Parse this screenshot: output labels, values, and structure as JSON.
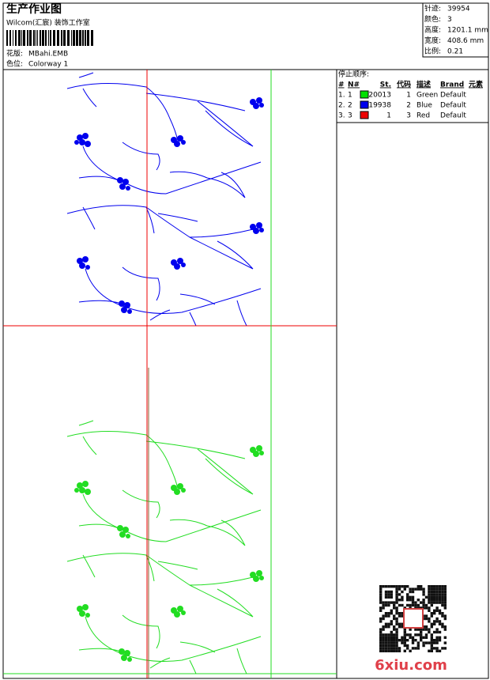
{
  "header": {
    "title": "生产作业图",
    "studio": "Wilcom(汇宸) 装饰工作室",
    "design_label": "花版:",
    "design": "MBahi.EMB",
    "colorway_label": "色位:",
    "colorway": "Colorway 1"
  },
  "stats": [
    {
      "label": "针迹:",
      "value": "39954"
    },
    {
      "label": "颜色:",
      "value": "3"
    },
    {
      "label": "高度:",
      "value": "1201.1 mm"
    },
    {
      "label": "宽度:",
      "value": "408.6 mm"
    },
    {
      "label": "比例:",
      "value": "0.21"
    }
  ],
  "stop_sequence": {
    "title": "停止顺序:",
    "columns": [
      "#",
      "N#",
      "St.",
      "代码",
      "描述",
      "Brand",
      "元素"
    ],
    "rows": [
      {
        "index": "1.",
        "no": "1",
        "color": "#00e000",
        "stitches": "20013",
        "code": "1",
        "description": "Green",
        "brand": "Default"
      },
      {
        "index": "2.",
        "no": "2",
        "color": "#0000ee",
        "stitches": "19938",
        "code": "2",
        "description": "Blue",
        "brand": "Default"
      },
      {
        "index": "3.",
        "no": "3",
        "color": "#ee0000",
        "stitches": "1",
        "code": "3",
        "description": "Red",
        "brand": "Default"
      }
    ]
  },
  "watermark": "6xiu.com"
}
